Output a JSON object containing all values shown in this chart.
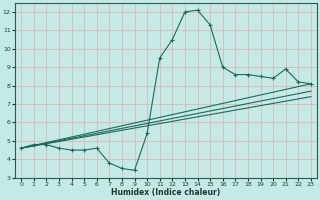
{
  "xlabel": "Humidex (Indice chaleur)",
  "xlim": [
    -0.5,
    23.5
  ],
  "ylim": [
    3,
    12.5
  ],
  "yticks": [
    3,
    4,
    5,
    6,
    7,
    8,
    9,
    10,
    11,
    12
  ],
  "xticks": [
    0,
    1,
    2,
    3,
    4,
    5,
    6,
    7,
    8,
    9,
    10,
    11,
    12,
    13,
    14,
    15,
    16,
    17,
    18,
    19,
    20,
    21,
    22,
    23
  ],
  "bg_color": "#c5eae6",
  "grid_color": "#ddb8b8",
  "line_color": "#1a6b5a",
  "line1_x": [
    0,
    1,
    2,
    3,
    4,
    5,
    6,
    7,
    8,
    9,
    10,
    11,
    12,
    13,
    14,
    15,
    16,
    17,
    18,
    19,
    20,
    21,
    22,
    23
  ],
  "line1_y": [
    4.6,
    4.8,
    4.8,
    4.6,
    4.5,
    4.5,
    4.6,
    3.8,
    3.5,
    3.4,
    5.4,
    9.5,
    10.5,
    12.0,
    12.1,
    11.3,
    9.0,
    8.6,
    8.6,
    8.5,
    8.4,
    8.9,
    8.2,
    8.1
  ],
  "line2_x": [
    0,
    23
  ],
  "line2_y": [
    4.6,
    8.1
  ],
  "line3_x": [
    0,
    23
  ],
  "line3_y": [
    4.6,
    7.7
  ],
  "line4_x": [
    0,
    23
  ],
  "line4_y": [
    4.6,
    7.4
  ]
}
